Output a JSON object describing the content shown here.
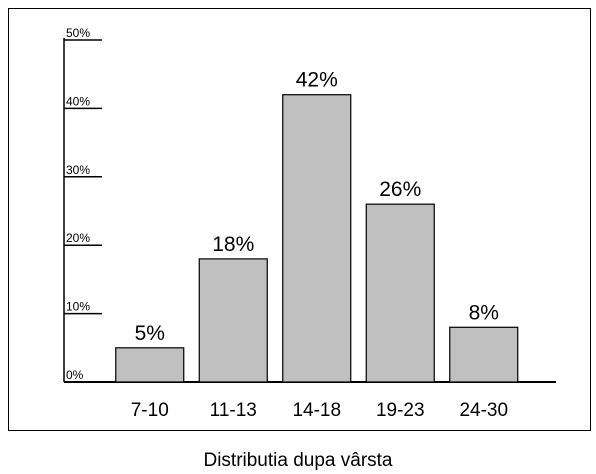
{
  "chart_data": {
    "type": "bar",
    "categories": [
      "7-10",
      "11-13",
      "14-18",
      "19-23",
      "24-30"
    ],
    "values": [
      5,
      18,
      42,
      26,
      8
    ],
    "data_labels": [
      "5%",
      "18%",
      "42%",
      "26%",
      "8%"
    ],
    "y_ticks": [
      0,
      10,
      20,
      30,
      40,
      50
    ],
    "y_tick_labels": [
      "0%",
      "10%",
      "20%",
      "30%",
      "40%",
      "50%"
    ],
    "ylim": [
      0,
      50
    ],
    "title": "",
    "xlabel": "Distributia dupa vârsta",
    "ylabel": "",
    "grid": false,
    "legend": "none",
    "bar_color": "#c0c0c0",
    "bar_edge_color": "#000000"
  }
}
